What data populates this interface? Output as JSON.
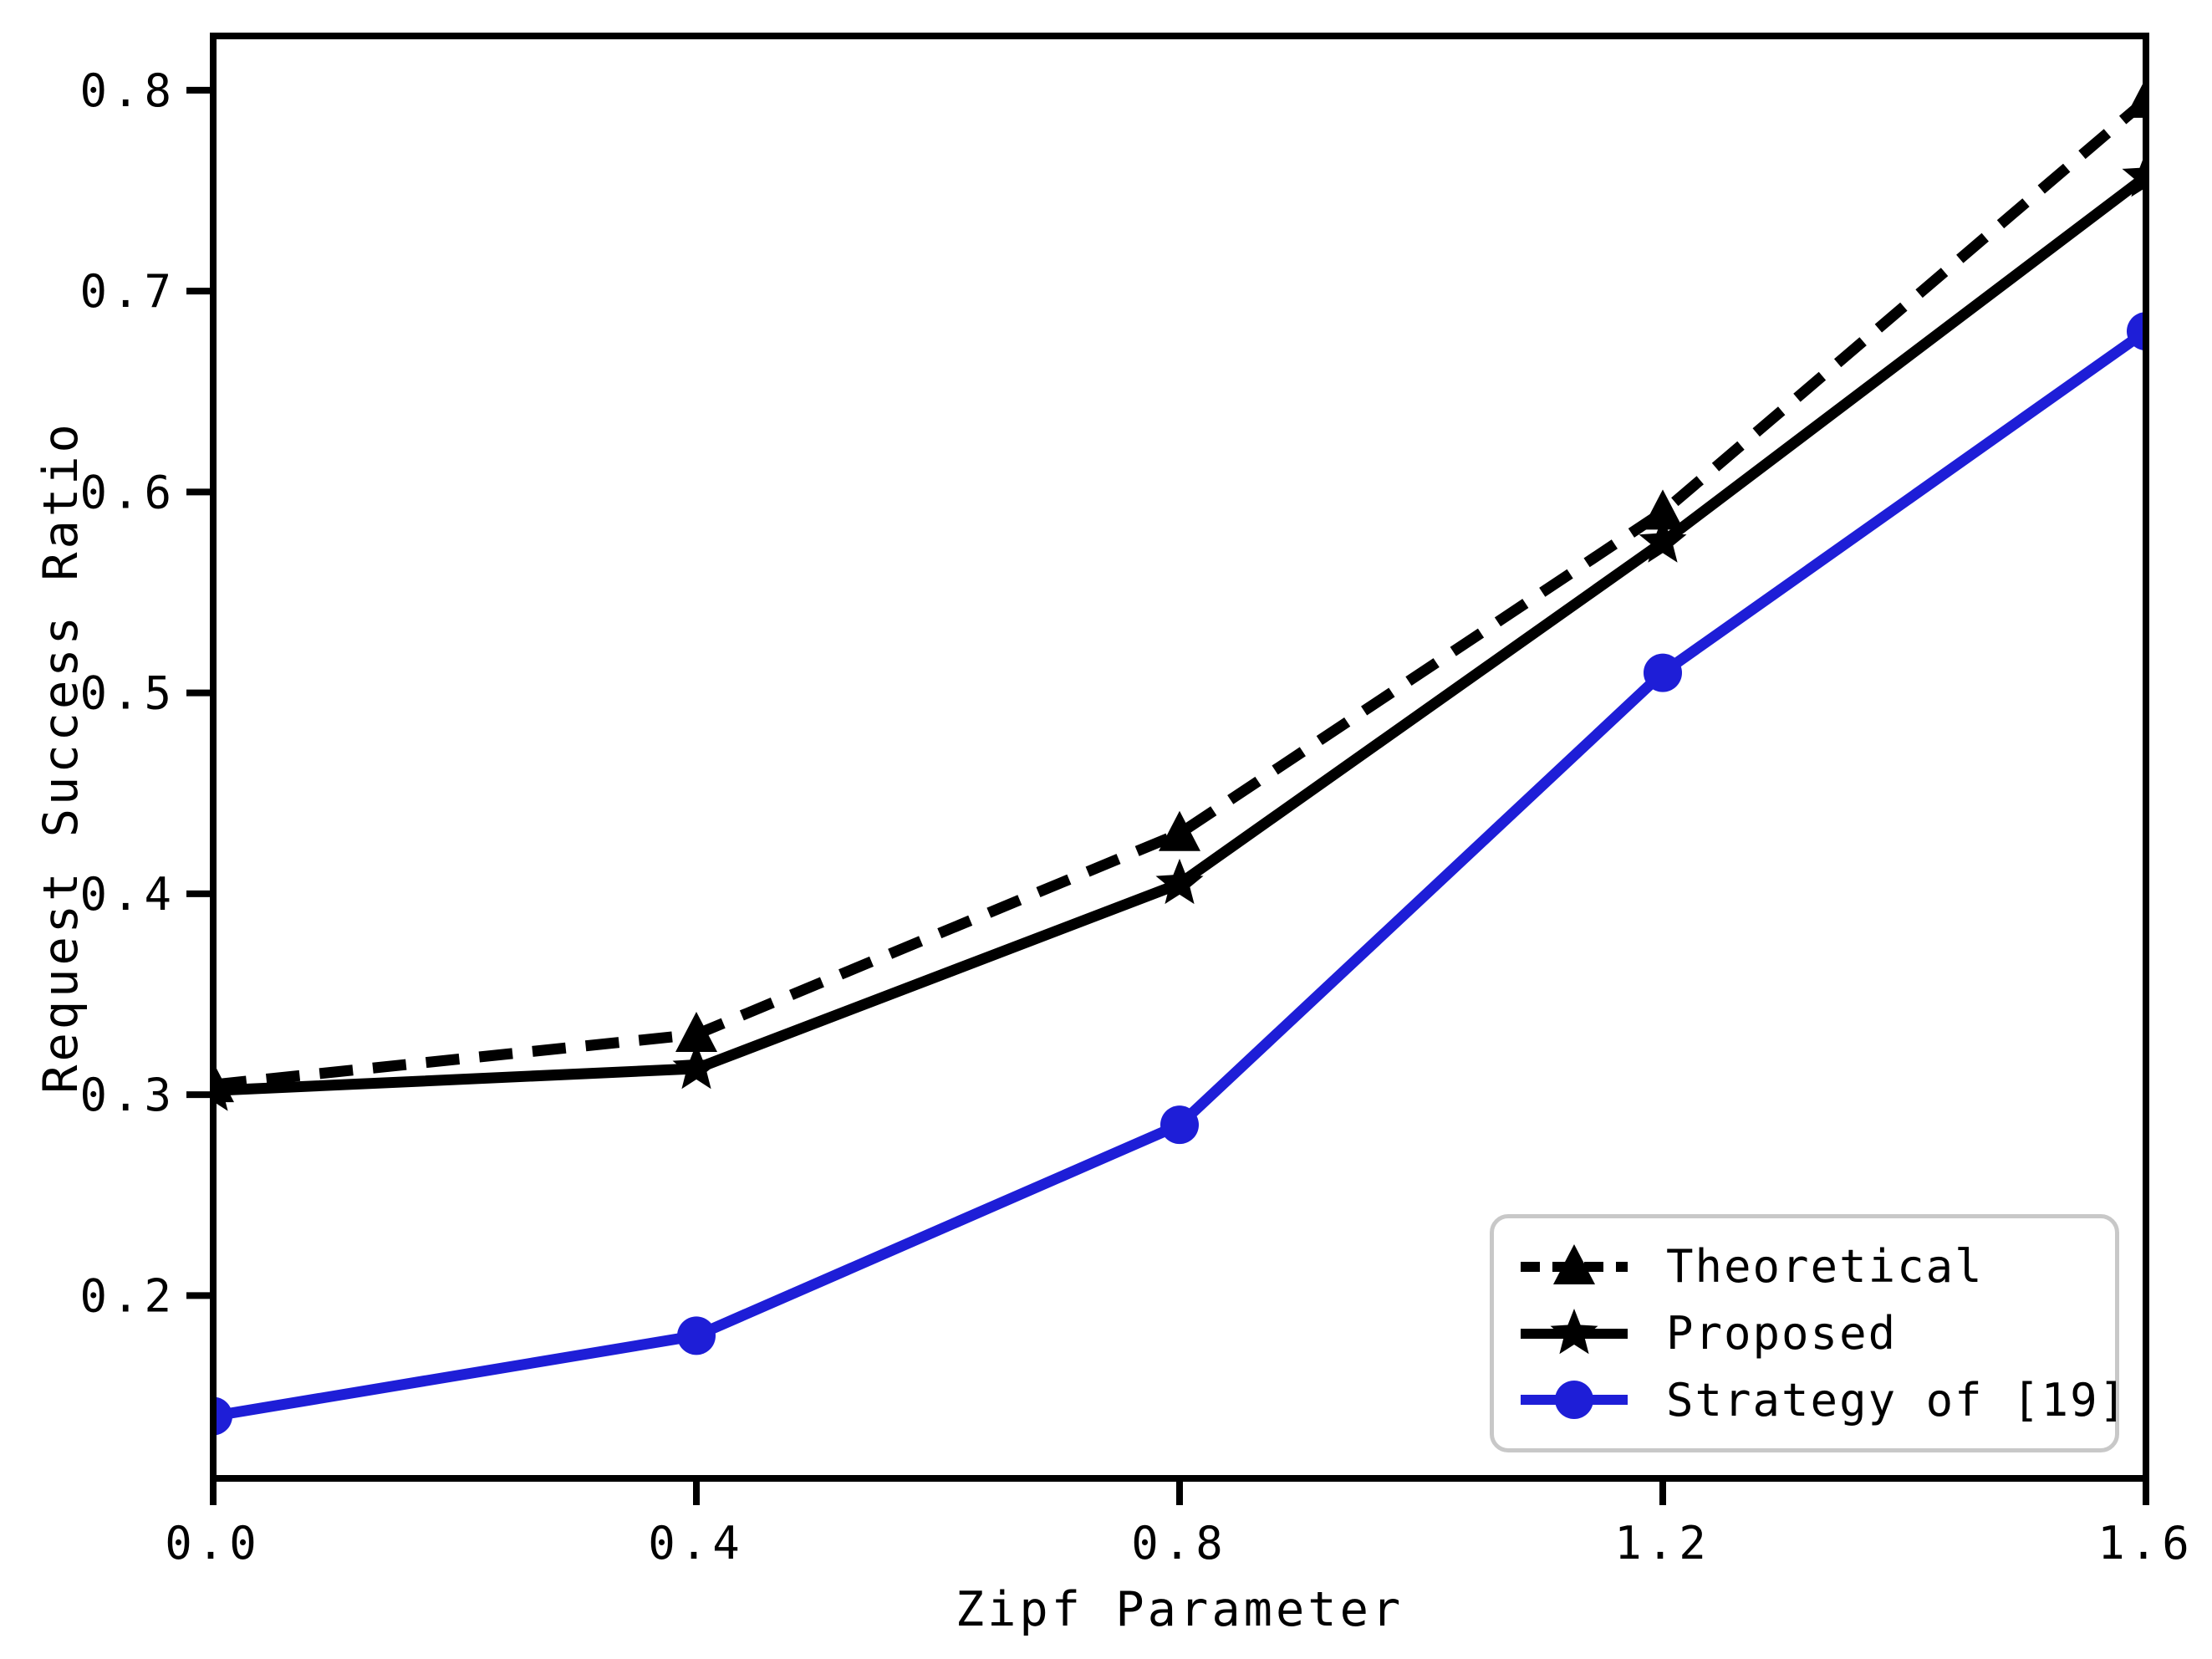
{
  "figure": {
    "background": "#ffffff"
  },
  "chart_data": {
    "type": "line",
    "title": "",
    "xlabel": "Zipf Parameter",
    "ylabel": "Request Success Ratio",
    "x": [
      0.0,
      0.4,
      0.8,
      1.2,
      1.6
    ],
    "xlim": [
      0.0,
      1.6
    ],
    "ylim": [
      0.109,
      0.827
    ],
    "xtick_values": [
      0.0,
      0.4,
      0.8,
      1.2,
      1.6
    ],
    "xtick_labels": [
      "0.0",
      "0.4",
      "0.8",
      "1.2",
      "1.6"
    ],
    "ytick_values": [
      0.2,
      0.3,
      0.4,
      0.5,
      0.6,
      0.7,
      0.8
    ],
    "ytick_labels": [
      "0.2",
      "0.3",
      "0.4",
      "0.5",
      "0.6",
      "0.7",
      "0.8"
    ],
    "grid": false,
    "legend": {
      "position": "lower right",
      "border_color": "#c8c8c8"
    },
    "series": [
      {
        "name": "Theoretical",
        "marker": "triangle",
        "line_style": "dashed",
        "color": "#000000",
        "values": [
          0.305,
          0.33,
          0.43,
          0.59,
          0.795
        ]
      },
      {
        "name": "Proposed",
        "marker": "star",
        "line_style": "solid",
        "color": "#000000",
        "values": [
          0.302,
          0.313,
          0.405,
          0.575,
          0.757
        ]
      },
      {
        "name": "Strategy of [19]",
        "marker": "circle",
        "line_style": "solid",
        "color": "#1e1ed7",
        "values": [
          0.14,
          0.18,
          0.285,
          0.51,
          0.68
        ]
      }
    ]
  }
}
